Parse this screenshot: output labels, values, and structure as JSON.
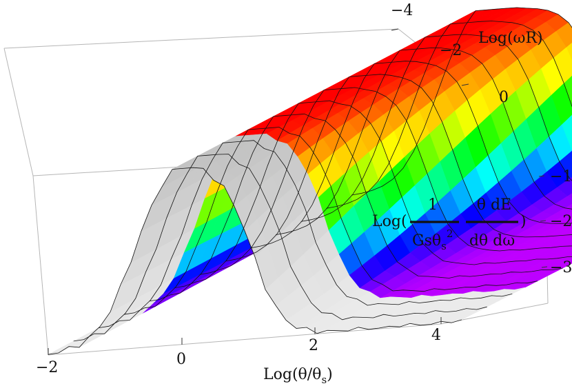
{
  "chart_data": {
    "type": "surface3d",
    "xlabel": "Log(θ/θ",
    "xlabel_sub": "s",
    "xlabel_tail": ")",
    "ylabel": "Log(ωR)",
    "zlabel": {
      "prefix": "Log(",
      "num1": "1",
      "den1": "Gsθ",
      "den1_sub": "s",
      "den1_sup": "2",
      "num2": "θ dE",
      "den2": "dθ dω",
      "suffix": ")"
    },
    "x_ticks": [
      "−2",
      "0",
      "2",
      "4"
    ],
    "y_ticks": [
      "−4",
      "−2",
      "0"
    ],
    "z_ticks": [
      "−1",
      "−2",
      "−3"
    ],
    "xlim": [
      -2,
      5
    ],
    "ylim": [
      -4,
      1
    ],
    "zlim": [
      -3.8,
      -0.6
    ],
    "colormap": "rainbow",
    "colored_region_y_max": 0,
    "greyed_region_y_min": 0,
    "mesh_lines": "constant Log(ωR)",
    "surface_model": {
      "description": "Log of angular/energy spectrum vs Log(θ/θs) and Log(ωR)",
      "plateau_value": -0.6,
      "low_angle_rise_start": -2,
      "peak_at_x": 0,
      "falloff_x_by_y": [
        {
          "y": -4,
          "x": 1.6
        },
        {
          "y": -2,
          "x": 1.6
        },
        {
          "y": 0,
          "x": 1.6
        }
      ]
    }
  }
}
